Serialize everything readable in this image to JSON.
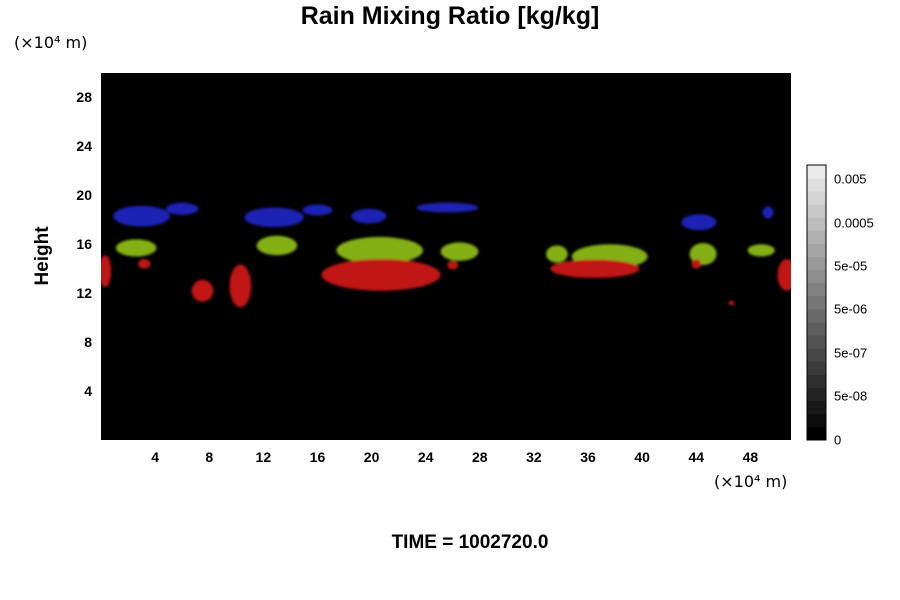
{
  "chart_data": {
    "type": "heatmap",
    "title": "Rain Mixing Ratio [kg/kg]",
    "ylabel": "Height",
    "x_unit": "(×10⁴ m)",
    "y_unit": "(×10⁴ m)",
    "xlim": [
      0,
      51
    ],
    "ylim": [
      0,
      30
    ],
    "x_ticks": [
      4,
      8,
      12,
      16,
      20,
      24,
      28,
      32,
      36,
      40,
      44,
      48
    ],
    "y_ticks": [
      4,
      8,
      12,
      16,
      20,
      24,
      28
    ],
    "grid": false,
    "background_value": 0,
    "colorbar": {
      "position": "right",
      "labels": [
        "0.005",
        "0.0005",
        "5e-05",
        "5e-06",
        "5e-07",
        "5e-08",
        "0"
      ]
    },
    "layers": [
      {
        "color": "#1a20b4",
        "blobs": [
          {
            "x": 3,
            "y": 18.3,
            "w": 4.2,
            "h": 1.7
          },
          {
            "x": 6.0,
            "y": 18.9,
            "w": 2.4,
            "h": 1.0
          },
          {
            "x": 12.8,
            "y": 18.2,
            "w": 4.4,
            "h": 1.6
          },
          {
            "x": 16.0,
            "y": 18.8,
            "w": 2.2,
            "h": 0.9
          },
          {
            "x": 19.8,
            "y": 18.3,
            "w": 2.6,
            "h": 1.2
          },
          {
            "x": 25.6,
            "y": 19.0,
            "w": 4.6,
            "h": 0.8
          },
          {
            "x": 44.2,
            "y": 17.8,
            "w": 2.6,
            "h": 1.3
          },
          {
            "x": 49.3,
            "y": 18.6,
            "w": 0.8,
            "h": 1.0
          }
        ]
      },
      {
        "color": "#84b012",
        "blobs": [
          {
            "x": 2.6,
            "y": 15.7,
            "w": 3.0,
            "h": 1.4
          },
          {
            "x": 13.0,
            "y": 15.9,
            "w": 3.0,
            "h": 1.6
          },
          {
            "x": 20.6,
            "y": 15.5,
            "w": 6.4,
            "h": 2.2
          },
          {
            "x": 26.5,
            "y": 15.4,
            "w": 2.8,
            "h": 1.5
          },
          {
            "x": 33.7,
            "y": 15.2,
            "w": 1.6,
            "h": 1.4
          },
          {
            "x": 37.6,
            "y": 15.0,
            "w": 5.6,
            "h": 2.0
          },
          {
            "x": 44.5,
            "y": 15.2,
            "w": 2.0,
            "h": 1.8
          },
          {
            "x": 48.8,
            "y": 15.5,
            "w": 2.0,
            "h": 1.0
          }
        ]
      },
      {
        "color": "#c01818",
        "blobs": [
          {
            "x": 0.3,
            "y": 13.8,
            "w": 0.9,
            "h": 2.6
          },
          {
            "x": 3.2,
            "y": 14.4,
            "w": 0.9,
            "h": 0.8
          },
          {
            "x": 7.5,
            "y": 12.2,
            "w": 1.6,
            "h": 1.8
          },
          {
            "x": 10.3,
            "y": 12.6,
            "w": 1.6,
            "h": 3.5
          },
          {
            "x": 20.7,
            "y": 13.5,
            "w": 8.8,
            "h": 2.6
          },
          {
            "x": 26.0,
            "y": 14.3,
            "w": 0.8,
            "h": 0.7
          },
          {
            "x": 36.5,
            "y": 14.0,
            "w": 6.6,
            "h": 1.5
          },
          {
            "x": 44.0,
            "y": 14.4,
            "w": 0.7,
            "h": 0.8
          },
          {
            "x": 46.6,
            "y": 11.2,
            "w": 0.4,
            "h": 0.4
          },
          {
            "x": 50.7,
            "y": 13.5,
            "w": 1.4,
            "h": 2.6
          }
        ]
      }
    ]
  },
  "footer": {
    "time_label": "TIME = 1002720.0"
  }
}
